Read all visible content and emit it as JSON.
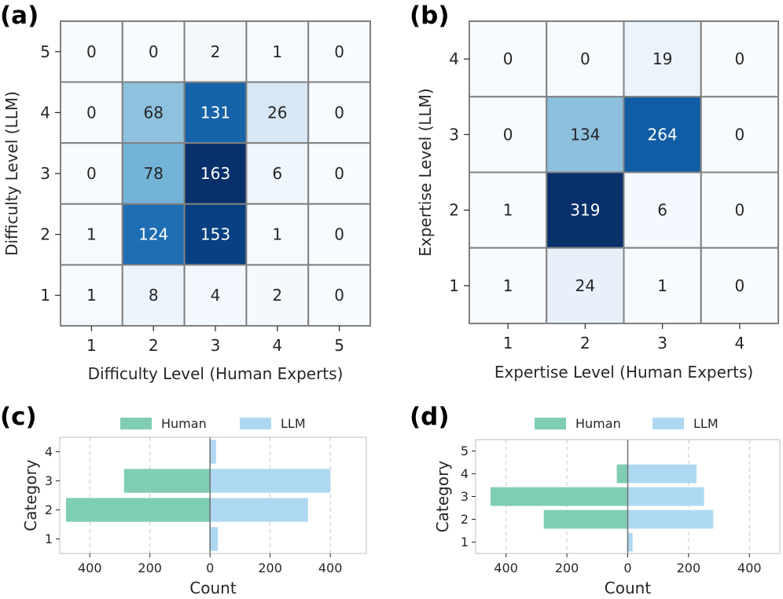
{
  "chart_data": [
    {
      "type": "heatmap",
      "panel_label": "(a)",
      "xlabel": "Difficulty Level (Human Experts)",
      "ylabel": "Difficulty Level (LLM)",
      "x_categories": [
        "1",
        "2",
        "3",
        "4",
        "5"
      ],
      "y_categories": [
        "5",
        "4",
        "3",
        "2",
        "1"
      ],
      "values": [
        [
          0,
          0,
          2,
          1,
          0
        ],
        [
          0,
          68,
          131,
          26,
          0
        ],
        [
          0,
          78,
          163,
          6,
          0
        ],
        [
          1,
          124,
          153,
          1,
          0
        ],
        [
          1,
          8,
          4,
          2,
          0
        ]
      ],
      "colormap": "Blues"
    },
    {
      "type": "heatmap",
      "panel_label": "(b)",
      "xlabel": "Expertise Level (Human Experts)",
      "ylabel": "Expertise Level (LLM)",
      "x_categories": [
        "1",
        "2",
        "3",
        "4"
      ],
      "y_categories": [
        "4",
        "3",
        "2",
        "1"
      ],
      "values": [
        [
          0,
          0,
          19,
          0
        ],
        [
          0,
          134,
          264,
          0
        ],
        [
          1,
          319,
          6,
          0
        ],
        [
          1,
          24,
          1,
          0
        ]
      ],
      "colormap": "Blues"
    },
    {
      "type": "bar",
      "orientation": "horizontal",
      "panel_label": "(c)",
      "xlabel": "Count",
      "ylabel": "Category",
      "categories": [
        "1",
        "2",
        "3",
        "4"
      ],
      "series": [
        {
          "name": "Human",
          "values": [
            2,
            479,
            286,
            0
          ],
          "direction": "left",
          "color": "#7fcdb5"
        },
        {
          "name": "LLM",
          "values": [
            26,
            326,
            400,
            20
          ],
          "direction": "right",
          "color": "#aed8f2"
        }
      ],
      "xlim": [
        -500,
        520
      ],
      "xticks": [
        -400,
        -200,
        0,
        200,
        400
      ],
      "xtick_labels": [
        "400",
        "200",
        "0",
        "200",
        "400"
      ],
      "legend": "top-center"
    },
    {
      "type": "bar",
      "orientation": "horizontal",
      "panel_label": "(d)",
      "xlabel": "Count",
      "ylabel": "Category",
      "categories": [
        "1",
        "2",
        "3",
        "4",
        "5"
      ],
      "series": [
        {
          "name": "Human",
          "values": [
            2,
            276,
            451,
            36,
            0
          ],
          "direction": "left",
          "color": "#7fcdb5"
        },
        {
          "name": "LLM",
          "values": [
            16,
            281,
            251,
            226,
            0
          ],
          "direction": "right",
          "color": "#aed8f2"
        }
      ],
      "xlim": [
        -500,
        500
      ],
      "xticks": [
        -400,
        -200,
        0,
        200,
        400
      ],
      "xtick_labels": [
        "400",
        "200",
        "0",
        "200",
        "400"
      ],
      "legend": "top-center"
    }
  ]
}
